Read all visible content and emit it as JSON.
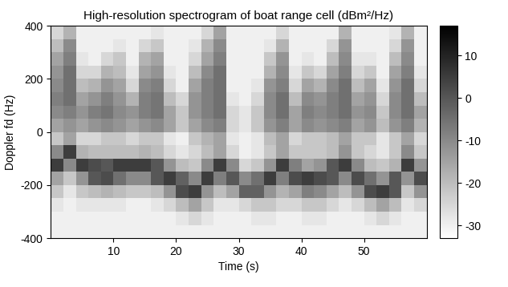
{
  "chart_data": {
    "type": "heatmap",
    "title": "High-resolution spectrogram of boat range cell (dBm²/Hz)",
    "x_label": "Time (s)",
    "y_label": "Doppler fd (Hz)",
    "color": "gray_r",
    "x": [
      1,
      3,
      5,
      7,
      9,
      11,
      13,
      15,
      17,
      19,
      21,
      23,
      25,
      27,
      29,
      31,
      33,
      35,
      37,
      39,
      41,
      43,
      45,
      47,
      49,
      51,
      53,
      55,
      57,
      59
    ],
    "y": [
      -375,
      -325,
      -275,
      -225,
      -175,
      -125,
      -75,
      -25,
      25,
      75,
      125,
      175,
      225,
      275,
      325,
      375
    ],
    "cells": [
      [
        -30,
        -30,
        -28,
        -22,
        -15,
        5,
        -10,
        -22,
        -15,
        -10,
        -8,
        -10,
        -12,
        -15,
        -20,
        -25
      ],
      [
        -30,
        -30,
        -30,
        -28,
        -22,
        -10,
        5,
        -15,
        -12,
        -8,
        -5,
        -5,
        -5,
        -8,
        -10,
        -18
      ],
      [
        -30,
        -30,
        -28,
        -22,
        -12,
        5,
        -18,
        -25,
        -15,
        -12,
        -15,
        -20,
        -25,
        -28,
        -30,
        -30
      ],
      [
        -30,
        -30,
        -28,
        -20,
        0,
        2,
        -20,
        -25,
        -12,
        -8,
        -12,
        -18,
        -25,
        -30,
        -30,
        -30
      ],
      [
        -30,
        -30,
        -28,
        -18,
        2,
        0,
        -20,
        -22,
        -10,
        -6,
        -8,
        -12,
        -18,
        -25,
        -30,
        -30
      ],
      [
        -30,
        -30,
        -28,
        -20,
        -5,
        5,
        -20,
        -22,
        -12,
        -10,
        -12,
        -15,
        -20,
        -22,
        -28,
        -30
      ],
      [
        -30,
        -30,
        -30,
        -22,
        -10,
        5,
        -20,
        -25,
        -15,
        -12,
        -18,
        -25,
        -28,
        -30,
        -30,
        -30
      ],
      [
        -30,
        -30,
        -30,
        -22,
        -10,
        5,
        -18,
        -22,
        -12,
        -8,
        -8,
        -10,
        -15,
        -18,
        -25,
        -30
      ],
      [
        -30,
        -30,
        -28,
        -20,
        0,
        0,
        -20,
        -22,
        -10,
        -6,
        -6,
        -8,
        -12,
        -15,
        -22,
        -28
      ],
      [
        -30,
        -30,
        -25,
        -12,
        5,
        -12,
        -25,
        -28,
        -15,
        -15,
        -20,
        -25,
        -28,
        -30,
        -30,
        -30
      ],
      [
        -30,
        -28,
        -20,
        2,
        -2,
        -20,
        -28,
        -30,
        -22,
        -22,
        -25,
        -30,
        -30,
        -30,
        -30,
        -30
      ],
      [
        -30,
        -25,
        -15,
        5,
        -10,
        -22,
        -25,
        -22,
        -15,
        -12,
        -12,
        -15,
        -20,
        -25,
        -28,
        -30
      ],
      [
        -30,
        -28,
        -22,
        -12,
        5,
        -10,
        -20,
        -18,
        -10,
        -8,
        -8,
        -8,
        -10,
        -15,
        -18,
        -25
      ],
      [
        -30,
        -30,
        -28,
        -20,
        -8,
        5,
        -15,
        -15,
        -8,
        -5,
        -5,
        -5,
        -5,
        -8,
        -10,
        -15
      ],
      [
        -30,
        -30,
        -28,
        -15,
        0,
        -10,
        -25,
        -28,
        -25,
        -25,
        -28,
        -30,
        -30,
        -30,
        -30,
        -30
      ],
      [
        -30,
        -30,
        -25,
        -2,
        -10,
        -25,
        -30,
        -30,
        -28,
        -28,
        -30,
        -30,
        -30,
        -30,
        -30,
        -30
      ],
      [
        -30,
        -28,
        -22,
        -2,
        -5,
        -22,
        -28,
        -28,
        -22,
        -22,
        -25,
        -28,
        -30,
        -30,
        -30,
        -30
      ],
      [
        -30,
        -28,
        -22,
        -12,
        5,
        -12,
        -22,
        -20,
        -12,
        -10,
        -10,
        -12,
        -18,
        -22,
        -28,
        -30
      ],
      [
        -30,
        -30,
        -25,
        -18,
        -8,
        5,
        -15,
        -15,
        -8,
        -5,
        -5,
        -8,
        -10,
        -12,
        -18,
        -25
      ],
      [
        -30,
        -30,
        -25,
        -15,
        2,
        -8,
        -22,
        -25,
        -15,
        -15,
        -20,
        -25,
        -28,
        -30,
        -30,
        -30
      ],
      [
        -30,
        -28,
        -22,
        -8,
        5,
        -15,
        -22,
        -22,
        -10,
        -8,
        -10,
        -15,
        -22,
        -28,
        -30,
        -30
      ],
      [
        -30,
        -28,
        -22,
        -10,
        2,
        -12,
        -22,
        -22,
        -12,
        -10,
        -12,
        -18,
        -25,
        -30,
        -30,
        -30
      ],
      [
        -30,
        -30,
        -25,
        -15,
        0,
        0,
        -20,
        -20,
        -10,
        -8,
        -8,
        -10,
        -15,
        -20,
        -25,
        -30
      ],
      [
        -30,
        -30,
        -28,
        -20,
        -10,
        5,
        -12,
        -15,
        -8,
        -5,
        -5,
        -5,
        -8,
        -10,
        -12,
        -18
      ],
      [
        -30,
        -30,
        -25,
        -12,
        2,
        -10,
        -22,
        -22,
        -15,
        -12,
        -15,
        -20,
        -25,
        -28,
        -30,
        -30
      ],
      [
        -30,
        -28,
        -20,
        2,
        -5,
        -20,
        -25,
        -22,
        -12,
        -10,
        -12,
        -15,
        -22,
        -28,
        -30,
        -30
      ],
      [
        -30,
        -25,
        -15,
        5,
        -12,
        -22,
        -28,
        -28,
        -20,
        -22,
        -25,
        -28,
        -30,
        -30,
        -30,
        -30
      ],
      [
        -30,
        -28,
        -20,
        0,
        0,
        -18,
        -22,
        -22,
        -12,
        -10,
        -10,
        -12,
        -15,
        -20,
        -25,
        -28
      ],
      [
        -30,
        -30,
        -28,
        -22,
        -12,
        5,
        -10,
        -15,
        -8,
        -5,
        -5,
        -5,
        -8,
        -10,
        -12,
        -18
      ],
      [
        -30,
        -30,
        -25,
        -12,
        2,
        -12,
        -22,
        -25,
        -18,
        -15,
        -20,
        -25,
        -28,
        -30,
        -30,
        -30
      ]
    ],
    "xlim": [
      0,
      60
    ],
    "ylim": [
      -400,
      400
    ],
    "xticks": [
      10,
      20,
      30,
      40,
      50
    ],
    "yticks": [
      -400,
      -200,
      0,
      200,
      400
    ],
    "colorbar": {
      "range": [
        -33,
        17
      ],
      "ticks": [
        -30,
        -20,
        -10,
        0,
        10
      ]
    }
  }
}
